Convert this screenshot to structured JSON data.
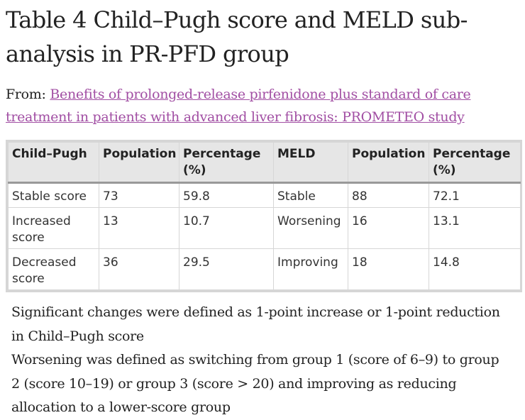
{
  "title": "Table 4 Child–Pugh score and MELD sub-analysis in PR-PFD group",
  "source": {
    "prefix": "From:",
    "link_text": "Benefits of prolonged-release pirfenidone plus standard of care treatment in patients with advanced liver fibrosis: PROMETEO study"
  },
  "table": {
    "headers": [
      "Child–Pugh",
      "Population",
      "Percentage (%)",
      "MELD",
      "Population",
      "Percentage (%)"
    ],
    "rows": [
      [
        "Stable score",
        "73",
        "59.8",
        "Stable",
        "88",
        "72.1"
      ],
      [
        "Increased score",
        "13",
        "10.7",
        "Worsening",
        "16",
        "13.1"
      ],
      [
        "Decreased score",
        "36",
        "29.5",
        "Improving",
        "18",
        "14.8"
      ]
    ]
  },
  "footnotes": [
    "Significant changes were defined as 1-point increase or 1-point reduction in Child–Pugh score",
    "Worsening was defined as switching from group 1 (score of 6–9) to group 2 (score 10–19) or group 3 (score > 20) and improving as reducing allocation to a lower-score group"
  ],
  "colors": {
    "link": "#a14ea3",
    "header_bg": "#e6e6e6",
    "border": "#d6d6d6"
  }
}
